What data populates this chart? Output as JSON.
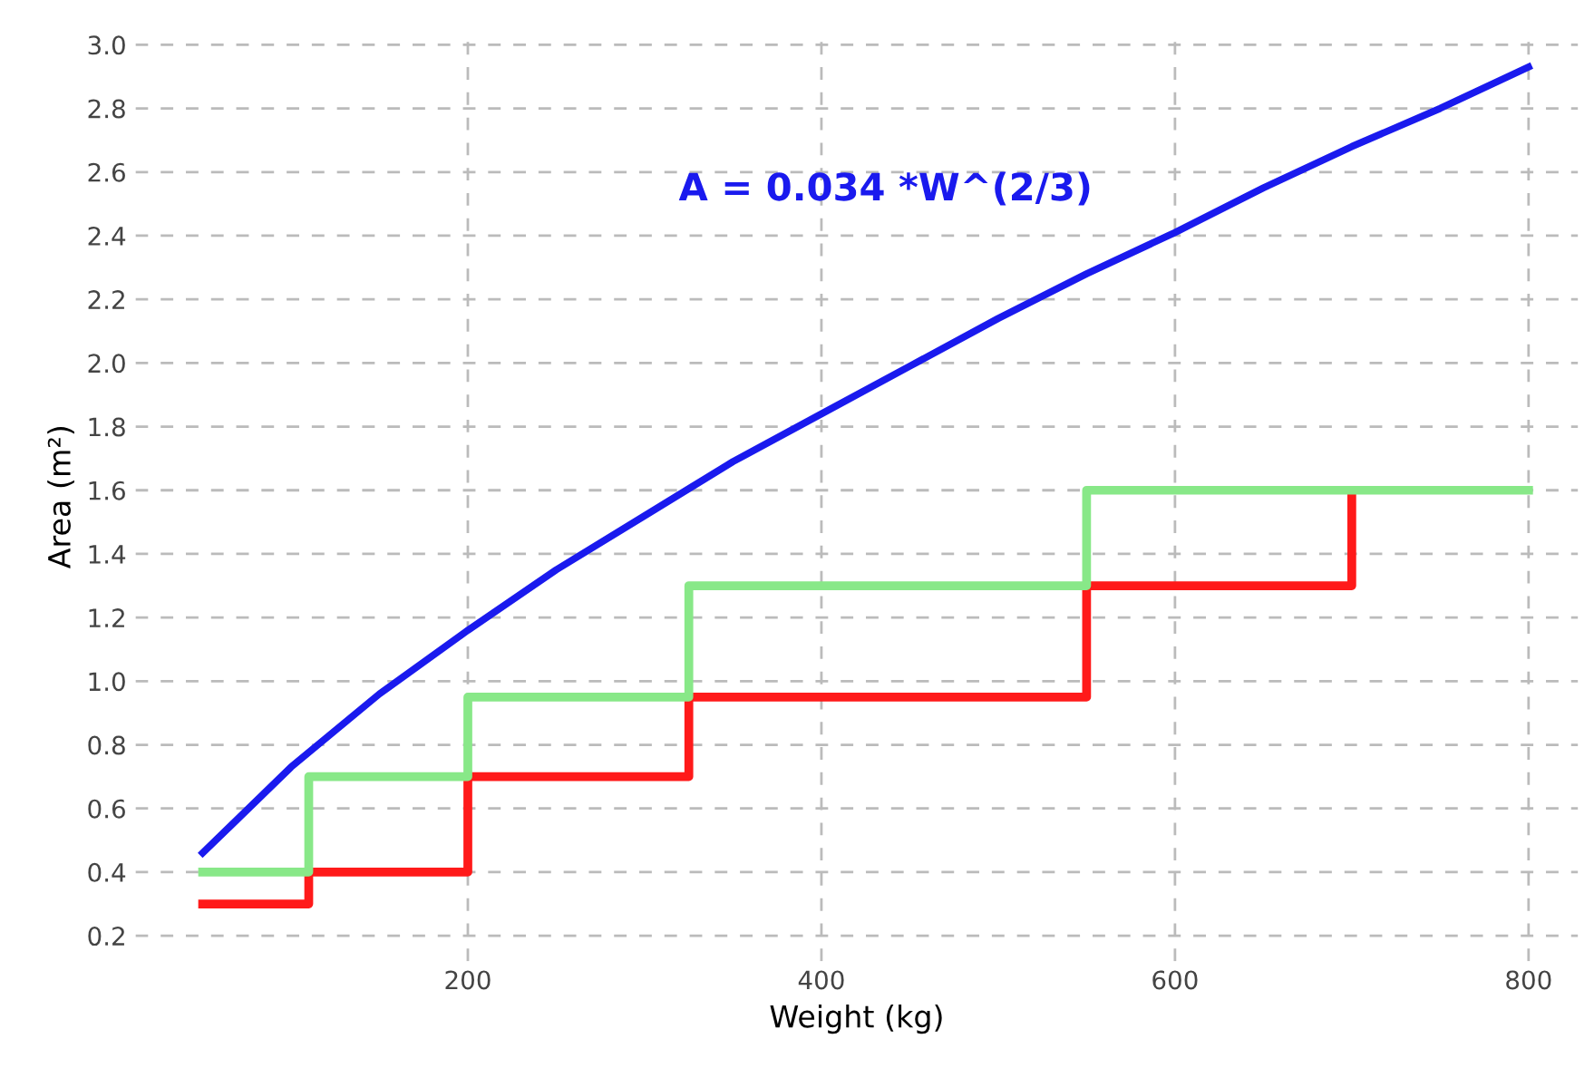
{
  "chart_data": {
    "type": "line",
    "xlabel": "Weight (kg)",
    "ylabel": "Area (m²)",
    "xlim": [
      12,
      828
    ],
    "ylim": [
      0.12,
      3.04
    ],
    "xticks": [
      200,
      400,
      600,
      800
    ],
    "yticks": [
      {
        "value": 0.2,
        "label": "0.2"
      },
      {
        "value": 0.4,
        "label": "0.4"
      },
      {
        "value": 0.6,
        "label": "0.6"
      },
      {
        "value": 0.8,
        "label": "0.8"
      },
      {
        "value": 1.0,
        "label": "1.0"
      },
      {
        "value": 1.2,
        "label": "1.2"
      },
      {
        "value": 1.4,
        "label": "1.4"
      },
      {
        "value": 1.6,
        "label": "1.6"
      },
      {
        "value": 1.8,
        "label": "1.8"
      },
      {
        "value": 2.0,
        "label": "2.0"
      },
      {
        "value": 2.2,
        "label": "2.2"
      },
      {
        "value": 2.4,
        "label": "2.4"
      },
      {
        "value": 2.6,
        "label": "2.6"
      },
      {
        "value": 2.8,
        "label": "2.8"
      },
      {
        "value": 3.0,
        "label": "3.0"
      }
    ],
    "grid": true,
    "marker": "none",
    "line_style": "solid",
    "annotations": [
      "A = 0.034 *W^(2/3)"
    ],
    "series": [
      {
        "color": "#1a1aee",
        "x": [
          50,
          100,
          150,
          200,
          250,
          300,
          350,
          400,
          450,
          500,
          550,
          600,
          650,
          700,
          750,
          800
        ],
        "values": [
          0.46,
          0.73,
          0.96,
          1.16,
          1.35,
          1.52,
          1.69,
          1.84,
          1.99,
          2.14,
          2.28,
          2.41,
          2.55,
          2.68,
          2.8,
          2.93
        ]
      },
      {
        "type": "step",
        "color": "#ff1a1a",
        "x": [
          50,
          110,
          200,
          325,
          550,
          700
        ],
        "values": [
          0.3,
          0.4,
          0.7,
          0.95,
          1.3,
          1.6
        ]
      },
      {
        "type": "step",
        "color": "#88e888",
        "x": [
          50,
          110,
          200,
          325,
          550,
          800
        ],
        "values": [
          0.4,
          0.7,
          0.95,
          1.3,
          1.6,
          1.6
        ]
      }
    ]
  }
}
